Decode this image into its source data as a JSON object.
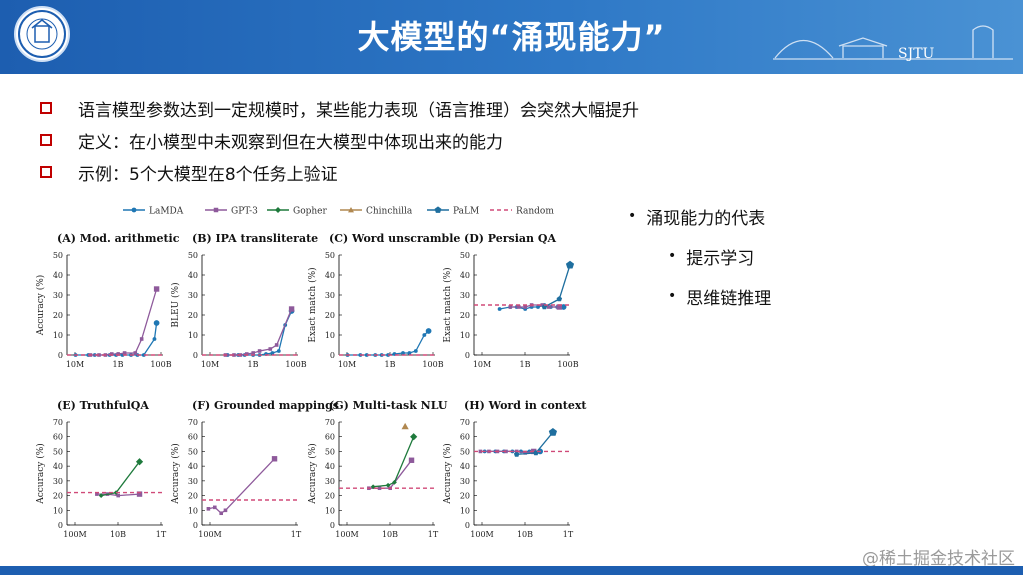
{
  "header": {
    "title": "大模型的“涌现能力”",
    "org_mark": "SJTU"
  },
  "bullets": [
    "语言模型参数达到一定规模时，某些能力表现（语言推理）会突然大幅提升",
    "定义：在小模型中未观察到但在大模型中体现出来的能力",
    "示例：5个大模型在8个任务上验证"
  ],
  "right_list": {
    "heading": "涌现能力的代表",
    "items": [
      "提示学习",
      "思维链推理"
    ]
  },
  "watermark": "@稀土掘金技术社区",
  "colors": {
    "header": "#1d5eb0",
    "bullet_box": "#c00000",
    "lamda": "#1f77b4",
    "gpt3": "#8e5a9b",
    "gopher": "#1e7a3c",
    "chinchilla": "#b08850",
    "palm": "#1f6f9f",
    "random": "#d04a78"
  },
  "chart_data": [
    {
      "type": "line",
      "title": "(A) Mod. arithmetic",
      "ylabel": "Accuracy (%)",
      "ylim": [
        0,
        50
      ],
      "yticks": [
        0,
        10,
        20,
        30,
        40,
        50
      ],
      "x_ticks": [
        "10M",
        "1B",
        "100B"
      ],
      "xrange": [
        7,
        11.5
      ],
      "series": [
        {
          "name": "LaMDA",
          "x": [
            7.4,
            8,
            8.3,
            9,
            9.3,
            9.6,
            10,
            10.3,
            10.6,
            11.1,
            11.2
          ],
          "y": [
            0,
            0,
            0,
            0,
            0,
            0,
            0,
            0,
            0,
            8,
            16
          ]
        },
        {
          "name": "GPT-3",
          "x": [
            8.1,
            8.5,
            8.8,
            9.1,
            9.4,
            9.7,
            10.2,
            10.5,
            11.2
          ],
          "y": [
            0,
            0,
            0,
            0.5,
            0.5,
            1,
            1,
            8,
            33
          ]
        },
        {
          "name": "Random",
          "x": [
            7,
            11.5
          ],
          "y": [
            0,
            0
          ]
        }
      ]
    },
    {
      "type": "line",
      "title": "(B) IPA transliterate",
      "ylabel": "BLEU (%)",
      "ylim": [
        0,
        50
      ],
      "yticks": [
        0,
        10,
        20,
        30,
        40,
        50
      ],
      "x_ticks": [
        "10M",
        "1B",
        "100B"
      ],
      "xrange": [
        7,
        11.5
      ],
      "series": [
        {
          "name": "LaMDA",
          "x": [
            8.2,
            8.7,
            9,
            9.4,
            9.7,
            10,
            10.3,
            10.6,
            10.9,
            11.2
          ],
          "y": [
            0,
            0,
            0,
            0,
            0,
            0.5,
            1,
            2,
            15,
            22
          ]
        },
        {
          "name": "GPT-3",
          "x": [
            8.1,
            8.5,
            8.8,
            9.1,
            9.4,
            9.7,
            10.2,
            10.5,
            11.2
          ],
          "y": [
            0,
            0,
            0,
            0.5,
            1,
            2,
            3,
            5,
            23
          ]
        },
        {
          "name": "Random",
          "x": [
            7,
            11.5
          ],
          "y": [
            0,
            0
          ]
        }
      ]
    },
    {
      "type": "line",
      "title": "(C) Word unscramble",
      "ylabel": "Exact match (%)",
      "ylim": [
        0,
        50
      ],
      "yticks": [
        0,
        10,
        20,
        30,
        40,
        50
      ],
      "x_ticks": [
        "10M",
        "1B",
        "100B"
      ],
      "xrange": [
        7,
        11.5
      ],
      "series": [
        {
          "name": "LaMDA",
          "x": [
            7.4,
            8,
            8.3,
            8.7,
            9,
            9.3,
            9.6,
            10,
            10.3,
            10.6,
            11,
            11.2
          ],
          "y": [
            0,
            0,
            0,
            0,
            0,
            0,
            0.5,
            1,
            1,
            2,
            10,
            12
          ]
        },
        {
          "name": "Random",
          "x": [
            7,
            11.5
          ],
          "y": [
            0,
            0
          ]
        }
      ]
    },
    {
      "type": "line",
      "title": "(D) Persian QA",
      "ylabel": "Exact match (%)",
      "ylim": [
        0,
        50
      ],
      "yticks": [
        0,
        10,
        20,
        30,
        40,
        50
      ],
      "x_ticks": [
        "10M",
        "1B",
        "100B"
      ],
      "xrange": [
        7,
        11.5
      ],
      "series": [
        {
          "name": "LaMDA",
          "x": [
            8.2,
            8.7,
            9,
            9.4,
            9.7,
            10,
            10.3,
            10.6,
            10.9,
            11.2
          ],
          "y": [
            23,
            24,
            24,
            23,
            24,
            24,
            25,
            24,
            24,
            24
          ]
        },
        {
          "name": "GPT-3",
          "x": [
            8.7,
            9.1,
            9.4,
            9.7,
            10.2,
            10.5,
            11
          ],
          "y": [
            24,
            24,
            24,
            25,
            25,
            24,
            24
          ]
        },
        {
          "name": "PaLM",
          "x": [
            10.3,
            11,
            11.5
          ],
          "y": [
            24,
            28,
            45
          ]
        },
        {
          "name": "Random",
          "x": [
            7,
            11.5
          ],
          "y": [
            25,
            25
          ]
        }
      ]
    },
    {
      "type": "line",
      "title": "(E) TruthfulQA",
      "ylabel": "Accuracy (%)",
      "ylim": [
        0,
        70
      ],
      "yticks": [
        0,
        10,
        20,
        30,
        40,
        50,
        60,
        70
      ],
      "x_ticks": [
        "100M",
        "10B",
        "1T"
      ],
      "xrange": [
        8,
        12.5
      ],
      "series": [
        {
          "name": "GPT-3",
          "x": [
            9.4,
            9.9,
            10.4,
            11.4
          ],
          "y": [
            21,
            21,
            20,
            21
          ]
        },
        {
          "name": "Gopher",
          "x": [
            9.6,
            10.3,
            11.4
          ],
          "y": [
            20,
            22,
            43
          ]
        },
        {
          "name": "Random",
          "x": [
            8,
            12.5
          ],
          "y": [
            22,
            22
          ]
        }
      ]
    },
    {
      "type": "line",
      "title": "(F) Grounded mappings",
      "ylabel": "Accuracy (%)",
      "ylim": [
        0,
        70
      ],
      "yticks": [
        0,
        10,
        20,
        30,
        40,
        50,
        60,
        70
      ],
      "x_ticks": [
        "100M",
        "1T"
      ],
      "xrange": [
        8,
        12.5
      ],
      "series": [
        {
          "name": "GPT-3",
          "x": [
            8.3,
            8.6,
            8.9,
            9.1,
            11.4
          ],
          "y": [
            11,
            12,
            8,
            10,
            45
          ]
        },
        {
          "name": "Random",
          "x": [
            8,
            12.5
          ],
          "y": [
            17,
            17
          ]
        }
      ]
    },
    {
      "type": "line",
      "title": "(G) Multi-task NLU",
      "ylabel": "Accuracy (%)",
      "ylim": [
        0,
        70
      ],
      "yticks": [
        0,
        10,
        20,
        30,
        40,
        50,
        60,
        70
      ],
      "x_ticks": [
        "100M",
        "10B",
        "1T"
      ],
      "xrange": [
        8,
        12.5
      ],
      "series": [
        {
          "name": "GPT-3",
          "x": [
            9.4,
            9.9,
            10.4,
            11.4
          ],
          "y": [
            25,
            25,
            25,
            44
          ]
        },
        {
          "name": "Gopher",
          "x": [
            9.6,
            10.3,
            10.6,
            11.5
          ],
          "y": [
            26,
            27,
            29,
            60
          ]
        },
        {
          "name": "Chinchilla",
          "x": [
            11.1
          ],
          "y": [
            67
          ]
        },
        {
          "name": "Random",
          "x": [
            8,
            12.5
          ],
          "y": [
            25,
            25
          ]
        }
      ]
    },
    {
      "type": "line",
      "title": "(H) Word in context",
      "ylabel": "Accuracy (%)",
      "ylim": [
        0,
        70
      ],
      "yticks": [
        0,
        10,
        20,
        30,
        40,
        50,
        60,
        70
      ],
      "x_ticks": [
        "100M",
        "10B",
        "1T"
      ],
      "xrange": [
        8,
        12.5
      ],
      "series": [
        {
          "name": "LaMDA",
          "x": [
            8.5,
            9,
            9.4,
            9.8,
            10.2,
            10.6,
            11.1
          ],
          "y": [
            50,
            50,
            50,
            50,
            50,
            50,
            50
          ]
        },
        {
          "name": "GPT-3",
          "x": [
            8.3,
            8.7,
            9.1,
            9.5,
            10,
            10.4,
            10.8
          ],
          "y": [
            50,
            50,
            50,
            50,
            50,
            49,
            50
          ]
        },
        {
          "name": "PaLM",
          "x": [
            10,
            10.9,
            11.7
          ],
          "y": [
            48,
            49,
            63
          ]
        },
        {
          "name": "Random",
          "x": [
            8,
            12.5
          ],
          "y": [
            50,
            50
          ]
        }
      ]
    }
  ],
  "legend": [
    "LaMDA",
    "GPT-3",
    "Gopher",
    "Chinchilla",
    "PaLM",
    "Random"
  ]
}
